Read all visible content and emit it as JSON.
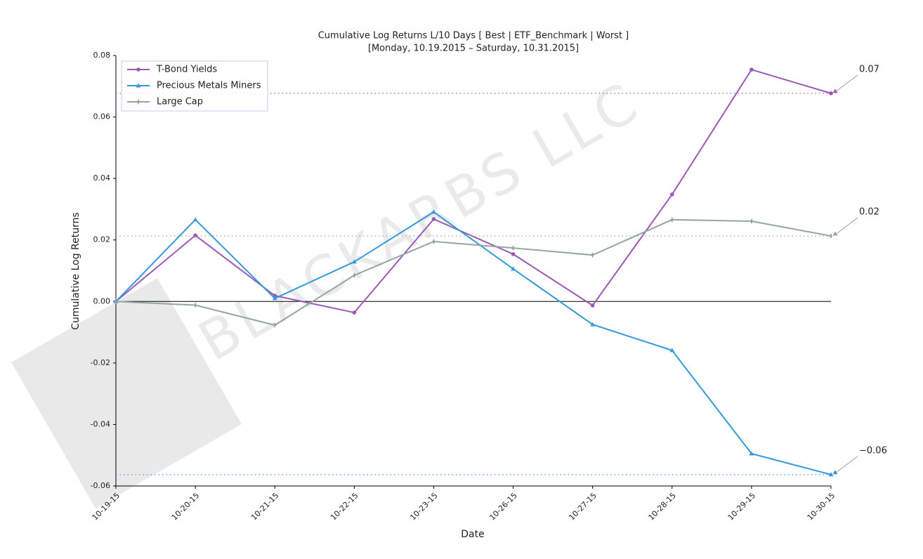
{
  "chart_data": {
    "type": "line",
    "title": "Cumulative Log Returns L/10 Days [ Best | ETF_Benchmark | Worst ]",
    "subtitle": "[Monday, 10.19.2015 – Saturday, 10.31.2015]",
    "x_label": "Date",
    "y_label": "Cumulative Log Returns",
    "watermark": "BLACKARBS LLC",
    "categories": [
      "10-19-15",
      "10-20-15",
      "10-21-15",
      "10-22-15",
      "10-23-15",
      "10-26-15",
      "10-27-15",
      "10-28-15",
      "10-29-15",
      "10-30-15"
    ],
    "series": [
      {
        "name": "T-Bond Yields",
        "color": "#9b59b6",
        "marker": "circle",
        "values": [
          0,
          0.0215,
          0.0019,
          -0.0036,
          0.0268,
          0.0154,
          -0.0013,
          0.0348,
          0.0754,
          0.0677
        ],
        "last_label": "0.07"
      },
      {
        "name": "Precious Metals Miners",
        "color": "#3498db",
        "marker": "triangle",
        "values": [
          0,
          0.0266,
          0.001,
          0.0129,
          0.0291,
          0.0106,
          -0.0075,
          -0.0159,
          -0.0495,
          -0.0563
        ],
        "last_label": "−0.06"
      },
      {
        "name": "Large Cap",
        "color": "#95a5a6",
        "marker": "diamond",
        "values": [
          0,
          -0.0012,
          -0.0077,
          0.0085,
          0.0195,
          0.0174,
          0.0151,
          0.0266,
          0.0261,
          0.0213
        ],
        "last_label": "0.02"
      }
    ],
    "ylim": [
      -0.06,
      0.08
    ],
    "yticks": [
      -0.06,
      -0.04,
      -0.02,
      {
        "value": 0,
        "label": "0.00"
      },
      0.02,
      0.04,
      0.06,
      0.08
    ],
    "legend": "upper left"
  }
}
